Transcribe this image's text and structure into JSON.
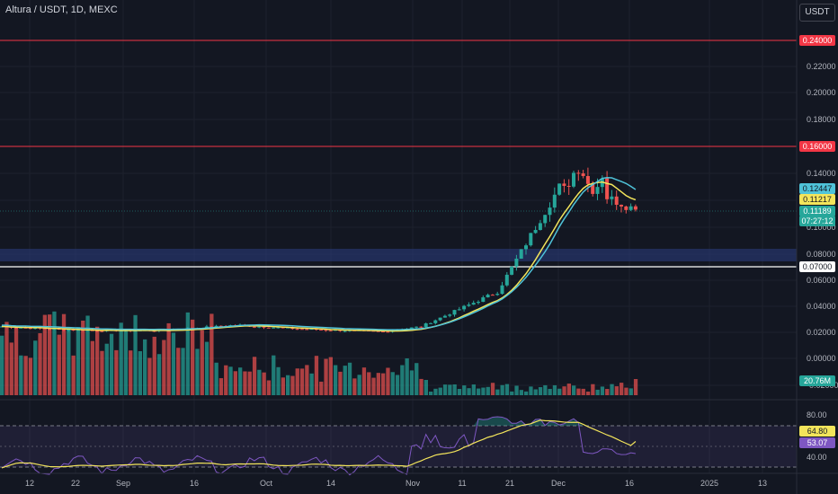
{
  "header": {
    "symbol_title": "Altura / USDT, 1D, MEXC",
    "currency_button": "USDT"
  },
  "price_axis": {
    "ticks": [
      "0.22000",
      "0.20000",
      "0.18000",
      "0.14000",
      "0.10000",
      "0.08000",
      "0.06000",
      "0.04000",
      "0.02000",
      "0.00000"
    ],
    "ticks_partial": [
      "-0.02000"
    ],
    "badges": {
      "resistance_high": "0.24000",
      "resistance_mid": "0.16000",
      "ma_blue": "0.12447",
      "ma_yellow": "0.11217",
      "last_price": "0.11189",
      "countdown": "07:27:12",
      "support": "0.07000",
      "volume": "20.76M"
    }
  },
  "rsi_axis": {
    "ticks": [
      "80.00",
      "40.00"
    ],
    "badges": {
      "rsi_ma": "64.80",
      "rsi": "53.07"
    }
  },
  "time_axis": {
    "labels": [
      "12",
      "22",
      "Sep",
      "16",
      "Oct",
      "14",
      "Nov",
      "11",
      "21",
      "Dec",
      "16",
      "2025",
      "13"
    ]
  },
  "colors": {
    "up": "#26a69a",
    "down": "#ef5350",
    "ma_yellow": "#f3e55b",
    "ma_blue": "#4fc3d9",
    "resistance": "#f23645",
    "rsi_line": "#7e57c2",
    "support": "#ffffff"
  },
  "chart_data": {
    "type": "line",
    "title": "Altura / USDT, 1D, MEXC",
    "x": [
      "Aug 12",
      "Aug 22",
      "Sep 1",
      "Sep 16",
      "Oct 1",
      "Oct 14",
      "Nov 1",
      "Nov 11",
      "Nov 21",
      "Dec 1",
      "Dec 16"
    ],
    "series": [
      {
        "values": [
          0.024,
          0.022,
          0.021,
          0.021,
          0.025,
          0.022,
          0.02,
          0.024,
          0.05,
          0.135,
          0.112
        ]
      }
    ],
    "horizontal_levels": [
      0.24,
      0.16,
      0.07
    ],
    "support_zone": [
      0.076,
      0.082
    ],
    "last_price": 0.11189,
    "ylim": [
      -0.02,
      0.25
    ],
    "volume_last": "20.76M",
    "rsi_last": 53.07,
    "rsi_ma_last": 64.8
  }
}
